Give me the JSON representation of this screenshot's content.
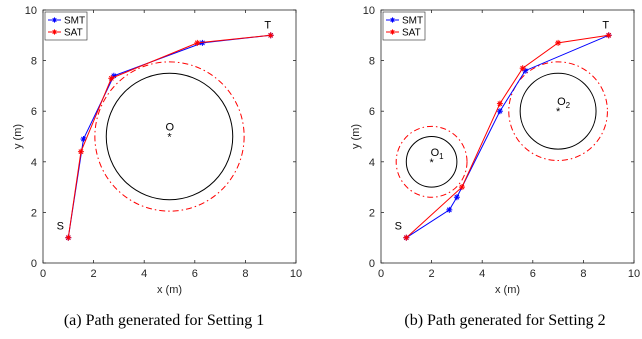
{
  "chart_data": [
    {
      "type": "line",
      "caption": "(a) Path generated for Setting 1",
      "xlabel": "x (m)",
      "ylabel": "y (m)",
      "xlim": [
        0,
        10
      ],
      "ylim": [
        0,
        10
      ],
      "xticks": [
        "0",
        "2",
        "4",
        "6",
        "8",
        "10"
      ],
      "yticks": [
        "0",
        "2",
        "4",
        "6",
        "8",
        "10"
      ],
      "legend": {
        "placement": "top-left"
      },
      "series": [
        {
          "name": "SMT",
          "color": "#0000ff",
          "marker": "asterisk",
          "x": [
            1,
            1.6,
            2.8,
            6.3,
            9
          ],
          "y": [
            1,
            4.9,
            7.4,
            8.7,
            9
          ]
        },
        {
          "name": "SAT",
          "color": "#ff0000",
          "marker": "asterisk",
          "x": [
            1,
            1.5,
            2.7,
            6.1,
            9
          ],
          "y": [
            1,
            4.4,
            7.3,
            8.7,
            9
          ]
        }
      ],
      "obstacles": [
        {
          "label": "O",
          "sub": "",
          "center": [
            5,
            5
          ],
          "radius": 2.5,
          "safety_radius": 2.95
        }
      ],
      "points": [
        {
          "label": "S",
          "x": 1,
          "y": 1
        },
        {
          "label": "T",
          "x": 9,
          "y": 9
        }
      ]
    },
    {
      "type": "line",
      "caption": "(b) Path generated for Setting 2",
      "xlabel": "x (m)",
      "ylabel": "y (m)",
      "xlim": [
        0,
        10
      ],
      "ylim": [
        0,
        10
      ],
      "xticks": [
        "0",
        "2",
        "4",
        "6",
        "8",
        "10"
      ],
      "yticks": [
        "0",
        "2",
        "4",
        "6",
        "8",
        "10"
      ],
      "legend": {
        "placement": "top-left"
      },
      "series": [
        {
          "name": "SMT",
          "color": "#0000ff",
          "marker": "asterisk",
          "x": [
            1,
            2.7,
            3,
            4.7,
            5.7,
            9
          ],
          "y": [
            1,
            2.1,
            2.6,
            6,
            7.6,
            9
          ]
        },
        {
          "name": "SAT",
          "color": "#ff0000",
          "marker": "asterisk",
          "x": [
            1,
            3.2,
            4.7,
            5.6,
            7,
            9
          ],
          "y": [
            1,
            3,
            6.3,
            7.7,
            8.7,
            9
          ]
        }
      ],
      "obstacles": [
        {
          "label": "O",
          "sub": "1",
          "center": [
            2,
            4
          ],
          "radius": 1,
          "safety_radius": 1.4
        },
        {
          "label": "O",
          "sub": "2",
          "center": [
            7,
            6
          ],
          "radius": 1.5,
          "safety_radius": 1.95
        }
      ],
      "points": [
        {
          "label": "S",
          "x": 1,
          "y": 1
        },
        {
          "label": "T",
          "x": 9,
          "y": 9
        }
      ]
    }
  ]
}
